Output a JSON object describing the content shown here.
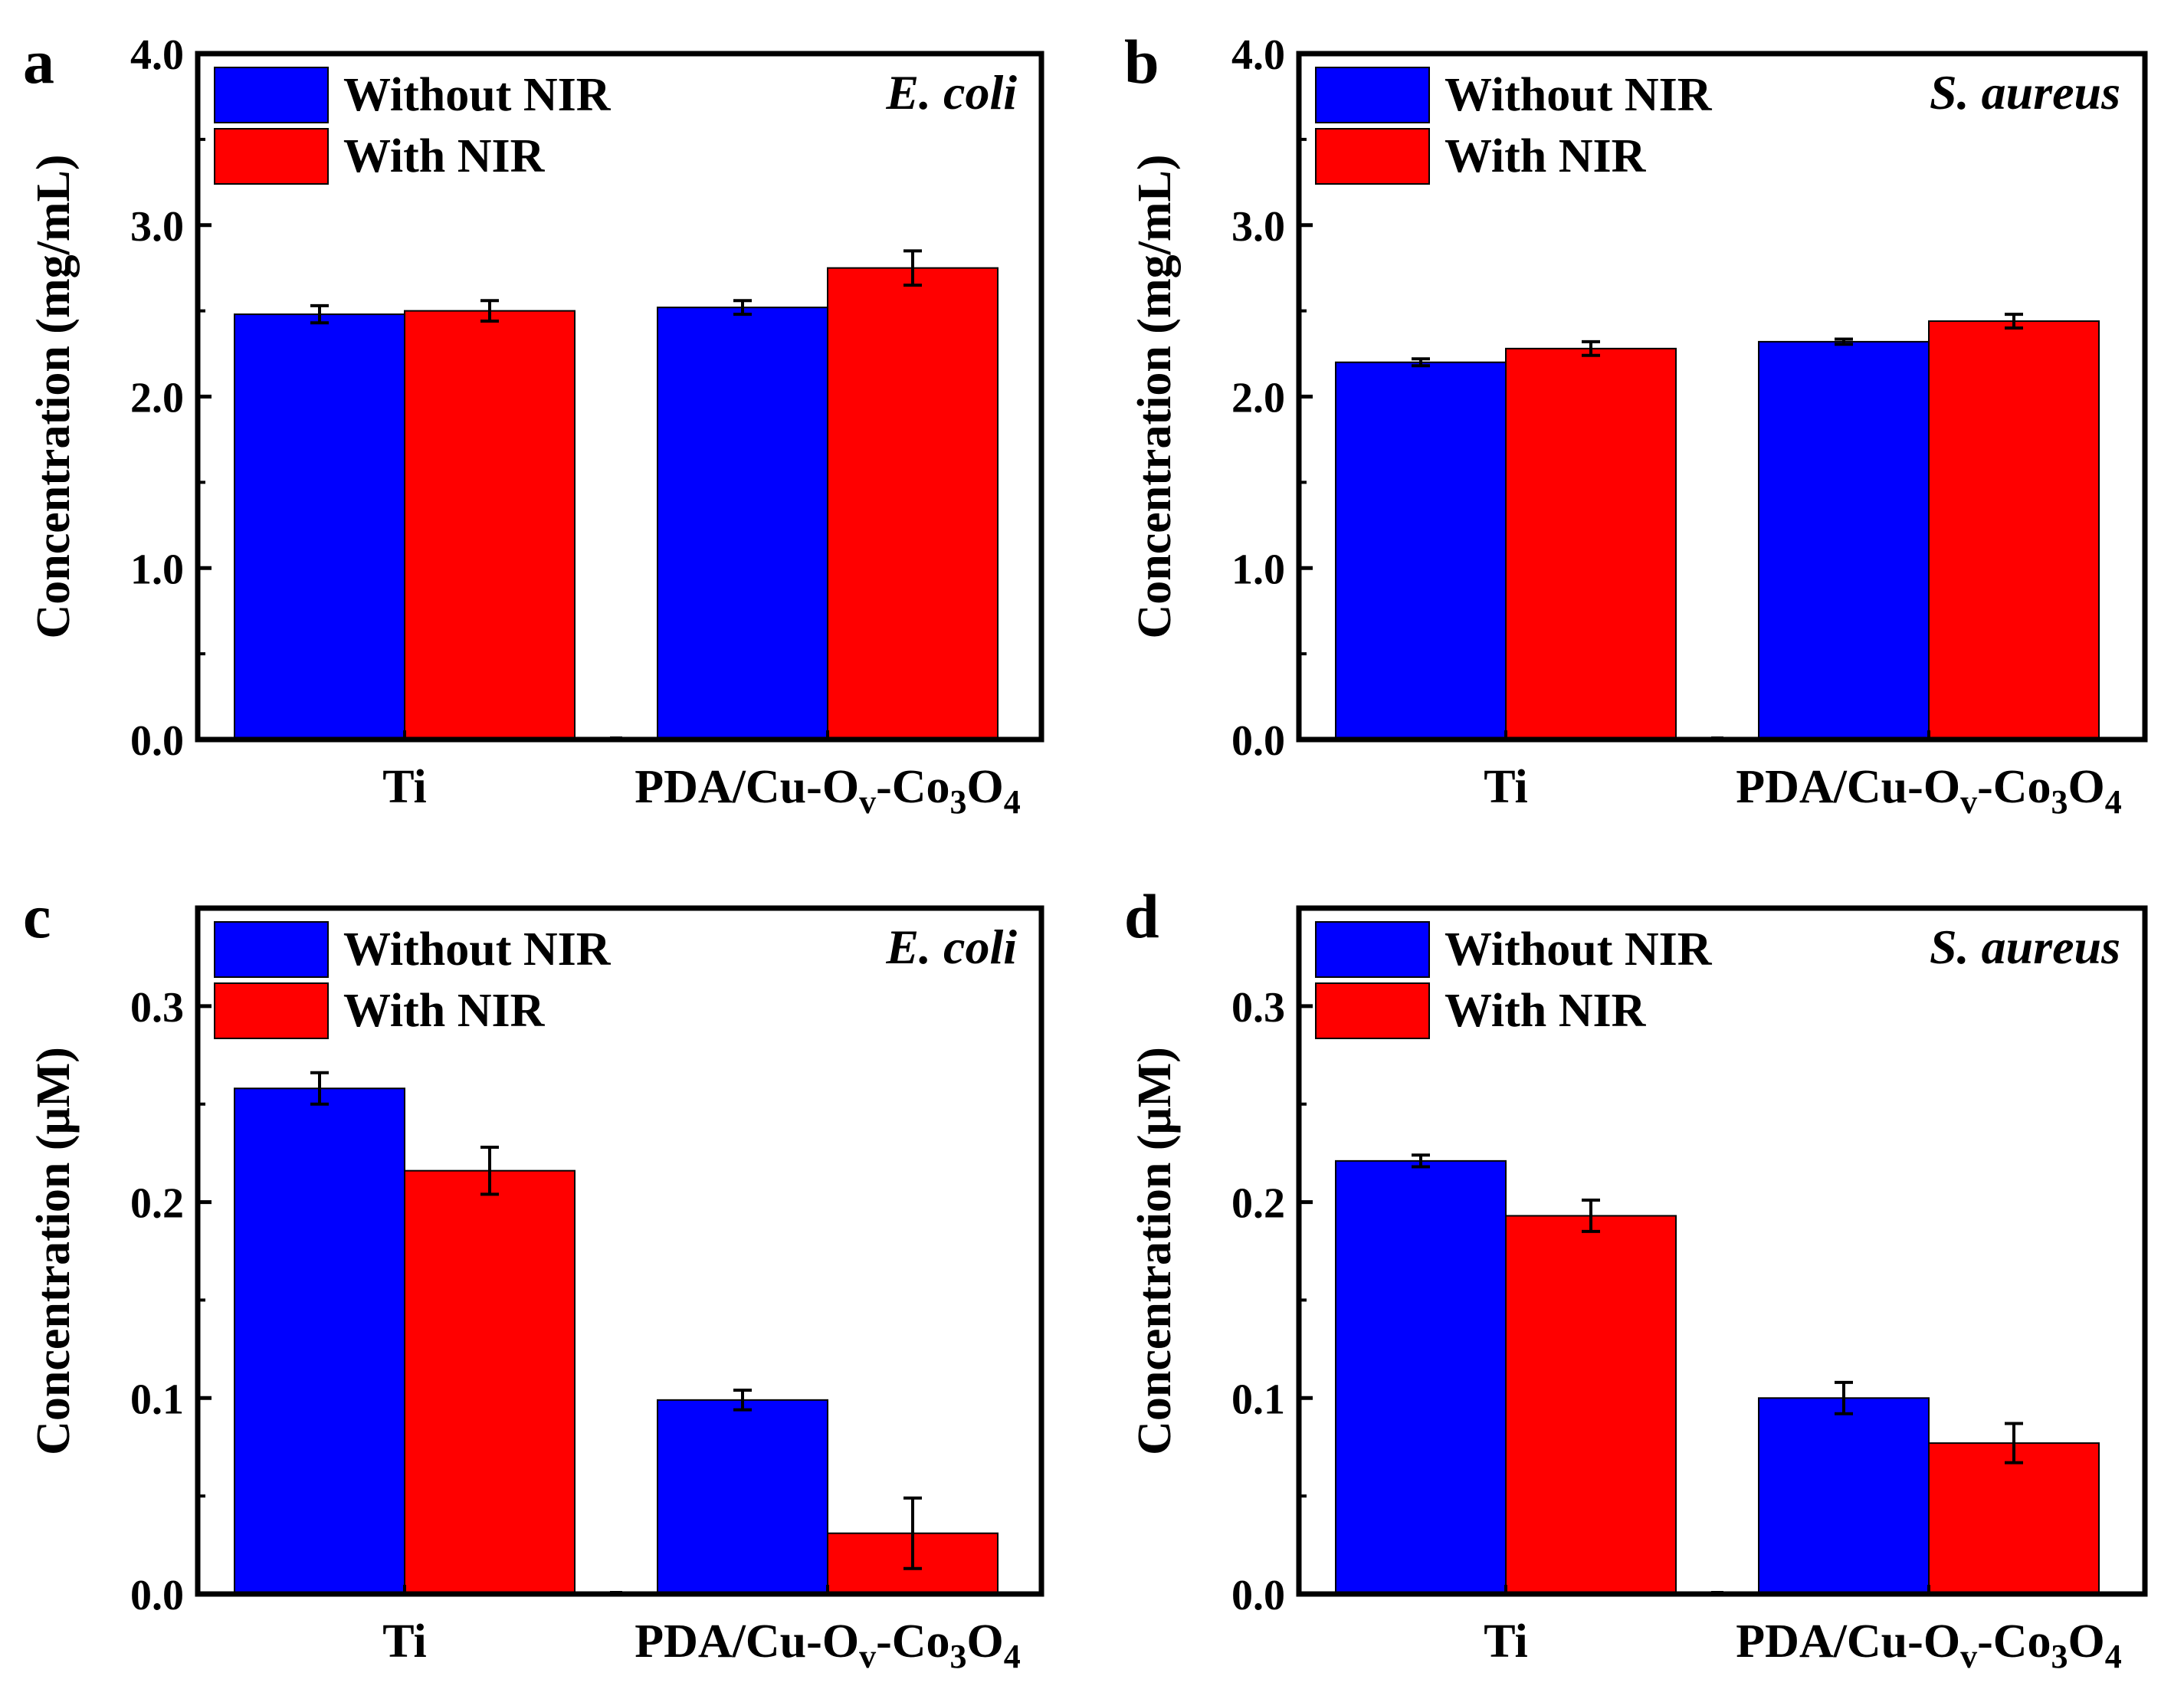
{
  "legend": {
    "without": "Without NIR",
    "with": "With NIR"
  },
  "colors": {
    "without": "#0000ff",
    "with": "#ff0000",
    "axis": "#000000"
  },
  "chart_data": [
    {
      "panel": "a",
      "type": "bar",
      "organism": "E. coli",
      "ylabel": "Concentration (mg/mL)",
      "ylim": [
        0,
        4.0
      ],
      "yticks": [
        "0.0",
        "1.0",
        "2.0",
        "3.0",
        "4.0"
      ],
      "categories": [
        "Ti",
        "PDA/Cu-Ov-Co3O4"
      ],
      "series": [
        {
          "name": "Without NIR",
          "values": [
            2.48,
            2.52
          ],
          "errors": [
            0.05,
            0.04
          ]
        },
        {
          "name": "With NIR",
          "values": [
            2.5,
            2.75
          ],
          "errors": [
            0.06,
            0.1
          ]
        }
      ]
    },
    {
      "panel": "b",
      "type": "bar",
      "organism": "S. aureus",
      "ylabel": "Concentration (mg/mL)",
      "ylim": [
        0,
        4.0
      ],
      "yticks": [
        "0.0",
        "1.0",
        "2.0",
        "3.0",
        "4.0"
      ],
      "categories": [
        "Ti",
        "PDA/Cu-Ov-Co3O4"
      ],
      "series": [
        {
          "name": "Without NIR",
          "values": [
            2.2,
            2.32
          ],
          "errors": [
            0.02,
            0.015
          ]
        },
        {
          "name": "With NIR",
          "values": [
            2.28,
            2.44
          ],
          "errors": [
            0.04,
            0.04
          ]
        }
      ]
    },
    {
      "panel": "c",
      "type": "bar",
      "organism": "E. coli",
      "ylabel": "Concentration (μM)",
      "ylim": [
        0,
        0.35
      ],
      "yticks": [
        "0.0",
        "0.1",
        "0.2",
        "0.3"
      ],
      "categories": [
        "Ti",
        "PDA/Cu-Ov-Co3O4"
      ],
      "series": [
        {
          "name": "Without NIR",
          "values": [
            0.258,
            0.099
          ],
          "errors": [
            0.008,
            0.005
          ]
        },
        {
          "name": "With NIR",
          "values": [
            0.216,
            0.031
          ],
          "errors": [
            0.012,
            0.018
          ]
        }
      ]
    },
    {
      "panel": "d",
      "type": "bar",
      "organism": "S. aureus",
      "ylabel": "Concentration (μM)",
      "ylim": [
        0,
        0.35
      ],
      "yticks": [
        "0.0",
        "0.1",
        "0.2",
        "0.3"
      ],
      "categories": [
        "Ti",
        "PDA/Cu-Ov-Co3O4"
      ],
      "series": [
        {
          "name": "Without NIR",
          "values": [
            0.221,
            0.1
          ],
          "errors": [
            0.003,
            0.008
          ]
        },
        {
          "name": "With NIR",
          "values": [
            0.193,
            0.077
          ],
          "errors": [
            0.008,
            0.01
          ]
        }
      ]
    }
  ]
}
